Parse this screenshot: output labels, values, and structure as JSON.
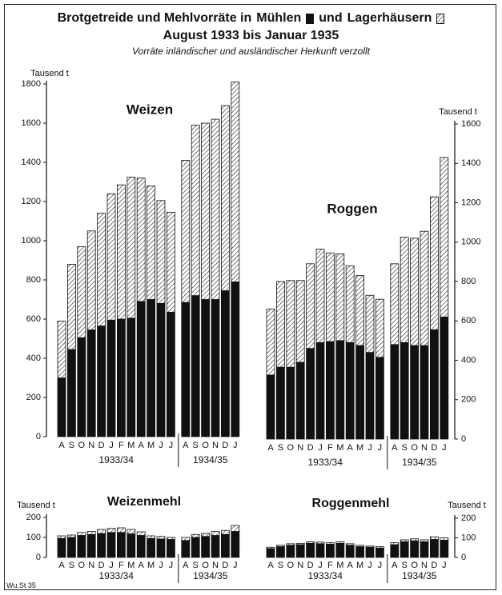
{
  "title_lead": "Brotgetreide und Mehlvorräte in",
  "legend": [
    {
      "name": "Mühlen",
      "color": "#111111"
    },
    {
      "name": "Lagerhäusern",
      "color": "#222222",
      "pattern": "hatch"
    }
  ],
  "legend_join": "und",
  "subtitle": "August 1933 bis Januar 1935",
  "note": "Vorräte inländischer und ausländischer Herkunft verzollt",
  "footer": "Wu.St 35",
  "chart_data": [
    {
      "type": "stacked_bar",
      "title": "Weizen",
      "y_label": "Tausend t",
      "y_axis_side": "left",
      "groups": [
        {
          "label": "1933/34",
          "categories": [
            "A",
            "S",
            "O",
            "N",
            "D",
            "J",
            "F",
            "M",
            "A",
            "M",
            "J",
            "J"
          ]
        },
        {
          "label": "1934/35",
          "categories": [
            "A",
            "S",
            "O",
            "N",
            "D",
            "J"
          ]
        }
      ],
      "series": [
        {
          "color": "#111111",
          "values": [
            300,
            445,
            505,
            545,
            565,
            595,
            600,
            605,
            690,
            700,
            680,
            635,
            685,
            720,
            700,
            700,
            745,
            790
          ]
        },
        {
          "color": "#222222",
          "pattern": "hatch",
          "values": [
            290,
            435,
            465,
            505,
            575,
            645,
            685,
            720,
            630,
            580,
            525,
            510,
            725,
            870,
            900,
            920,
            945,
            1020
          ]
        }
      ],
      "ylim": [
        0,
        1800
      ],
      "yticks": [
        0,
        200,
        400,
        600,
        800,
        1000,
        1200,
        1400,
        1600,
        1800
      ]
    },
    {
      "type": "stacked_bar",
      "title": "Roggen",
      "y_label": "Tausend t",
      "y_axis_side": "right",
      "groups": [
        {
          "label": "1933/34",
          "categories": [
            "A",
            "S",
            "O",
            "N",
            "D",
            "J",
            "F",
            "M",
            "A",
            "M",
            "J",
            "J"
          ]
        },
        {
          "label": "1934/35",
          "categories": [
            "A",
            "S",
            "O",
            "N",
            "D",
            "J"
          ]
        }
      ],
      "series": [
        {
          "color": "#111111",
          "values": [
            325,
            365,
            365,
            390,
            460,
            490,
            495,
            500,
            490,
            475,
            440,
            415,
            480,
            490,
            475,
            475,
            555,
            620
          ]
        },
        {
          "color": "#222222",
          "pattern": "hatch",
          "values": [
            335,
            435,
            440,
            415,
            430,
            475,
            450,
            440,
            390,
            355,
            290,
            295,
            410,
            535,
            545,
            580,
            675,
            810
          ]
        }
      ],
      "ylim": [
        0,
        1600
      ],
      "yticks": [
        0,
        200,
        400,
        600,
        800,
        1000,
        1200,
        1400,
        1600
      ]
    },
    {
      "type": "stacked_bar",
      "title": "Weizenmehl",
      "y_label": "Tausend t",
      "y_axis_side": "left",
      "groups": [
        {
          "label": "1933/34",
          "categories": [
            "A",
            "S",
            "O",
            "N",
            "D",
            "J",
            "F",
            "M",
            "A",
            "M",
            "J",
            "J"
          ]
        },
        {
          "label": "1934/35",
          "categories": [
            "A",
            "S",
            "O",
            "N",
            "D",
            "J"
          ]
        }
      ],
      "series": [
        {
          "color": "#111111",
          "values": [
            95,
            100,
            110,
            115,
            120,
            125,
            125,
            118,
            110,
            95,
            92,
            90,
            85,
            100,
            105,
            110,
            115,
            130
          ]
        },
        {
          "color": "#222222",
          "pattern": "hatch",
          "values": [
            13,
            12,
            15,
            15,
            20,
            20,
            23,
            22,
            18,
            13,
            13,
            10,
            15,
            15,
            15,
            20,
            20,
            30
          ]
        }
      ],
      "ylim": [
        0,
        200
      ],
      "yticks": [
        0,
        100,
        200
      ]
    },
    {
      "type": "stacked_bar",
      "title": "Roggenmehl",
      "y_label": "Tausend t",
      "y_axis_side": "right",
      "groups": [
        {
          "label": "1933/34",
          "categories": [
            "A",
            "S",
            "O",
            "N",
            "D",
            "J",
            "F",
            "M",
            "A",
            "M",
            "J",
            "J"
          ]
        },
        {
          "label": "1934/35",
          "categories": [
            "A",
            "S",
            "O",
            "N",
            "D",
            "J"
          ]
        }
      ],
      "series": [
        {
          "color": "#111111",
          "values": [
            45,
            55,
            62,
            65,
            72,
            70,
            68,
            72,
            62,
            55,
            52,
            48,
            65,
            80,
            85,
            80,
            92,
            88
          ]
        },
        {
          "color": "#222222",
          "pattern": "hatch",
          "values": [
            7,
            7,
            8,
            7,
            8,
            8,
            7,
            8,
            8,
            7,
            6,
            7,
            10,
            10,
            10,
            10,
            13,
            12
          ]
        }
      ],
      "ylim": [
        0,
        200
      ],
      "yticks": [
        0,
        100,
        200
      ]
    }
  ]
}
